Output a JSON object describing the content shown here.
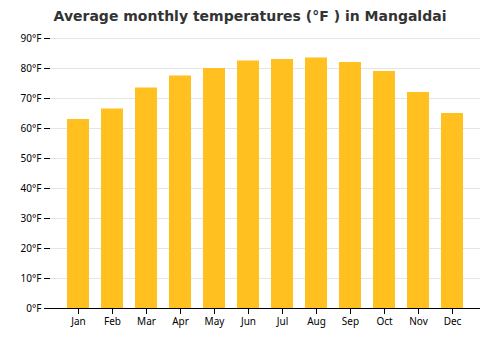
{
  "chart_data": {
    "type": "bar",
    "title": "Average monthly temperatures (°F ) in Mangaldai",
    "categories": [
      "Jan",
      "Feb",
      "Mar",
      "Apr",
      "May",
      "Jun",
      "Jul",
      "Aug",
      "Sep",
      "Oct",
      "Nov",
      "Dec"
    ],
    "values": [
      63,
      66.5,
      73.5,
      77.5,
      80,
      82.5,
      83,
      83.5,
      82,
      79,
      72,
      65
    ],
    "color": "#FFC020",
    "ylim": [
      0,
      90
    ],
    "yticks": [
      {
        "value": 0,
        "label": "0°F"
      },
      {
        "value": 10,
        "label": "10°F"
      },
      {
        "value": 20,
        "label": "20°F"
      },
      {
        "value": 30,
        "label": "30°F"
      },
      {
        "value": 40,
        "label": "40°F"
      },
      {
        "value": 50,
        "label": "50°F"
      },
      {
        "value": 60,
        "label": "60°F"
      },
      {
        "value": 70,
        "label": "70°F"
      },
      {
        "value": 80,
        "label": "80°F"
      },
      {
        "value": 90,
        "label": "90°F"
      }
    ],
    "grid": true
  }
}
